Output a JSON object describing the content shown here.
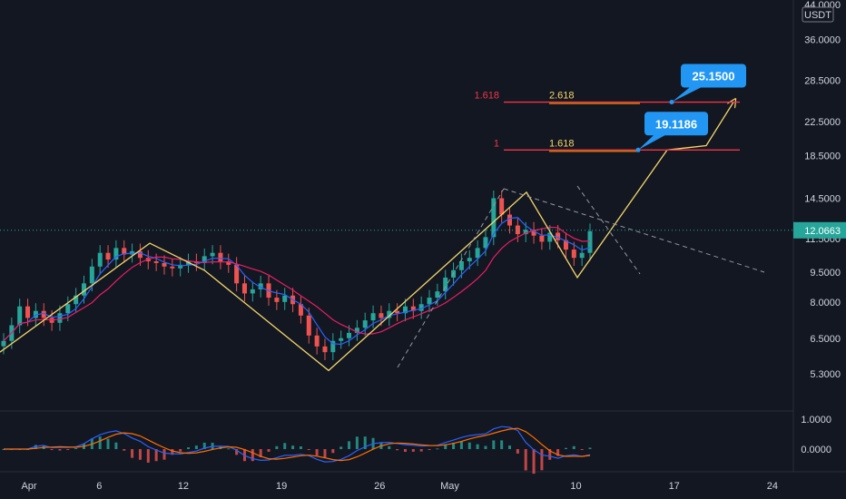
{
  "chart_data": {
    "type": "candlestick",
    "pair_unit": "USDT",
    "price_axis_labels": [
      "44.0000",
      "36.0000",
      "28.5000",
      "22.5000",
      "18.5000",
      "14.5000",
      "11.5000",
      "9.5000",
      "8.0000",
      "6.5000",
      "5.3000"
    ],
    "price_axis_values": [
      44.0,
      36.0,
      28.5,
      22.5,
      18.5,
      14.5,
      11.5,
      9.5,
      8.0,
      6.5,
      5.3
    ],
    "current_price": "12.0663",
    "current_price_value": 12.0663,
    "date_axis_labels": [
      "Apr",
      "6",
      "12",
      "19",
      "26",
      "May",
      "10",
      "17",
      "24"
    ],
    "fib_levels": [
      {
        "left_label": "1.618",
        "right_label": "2.618",
        "value": 25.15,
        "color": "#f23645"
      },
      {
        "left_label": "1",
        "right_label": "1.618",
        "value": 19.1186,
        "color": "#f23645"
      }
    ],
    "callouts": [
      {
        "text": "25.1500",
        "value": 25.15
      },
      {
        "text": "19.1186",
        "value": 19.1186
      }
    ],
    "macd_axis_labels": [
      "1.0000",
      "0.0000"
    ],
    "macd_axis_values": [
      1.0,
      0.0
    ],
    "zigzag_path_prices": [
      6.0,
      11.2,
      9.6,
      5.4,
      15.0,
      9.2,
      19.1186,
      19.6,
      25.15
    ],
    "candle_closes": [
      6.4,
      7.0,
      7.8,
      7.3,
      7.6,
      7.3,
      7.1,
      7.5,
      7.9,
      8.3,
      8.9,
      9.8,
      10.6,
      10.2,
      10.9,
      10.5,
      10.7,
      10.3,
      10.1,
      10.0,
      9.8,
      9.7,
      9.9,
      10.1,
      10.0,
      10.4,
      10.6,
      10.1,
      9.9,
      8.9,
      8.4,
      8.6,
      8.9,
      8.2,
      8.0,
      8.3,
      7.9,
      7.4,
      6.6,
      6.2,
      6.0,
      6.4,
      6.5,
      6.7,
      6.9,
      7.2,
      7.5,
      7.3,
      7.6,
      7.5,
      7.8,
      7.6,
      7.9,
      8.2,
      8.5,
      9.2,
      9.6,
      10.1,
      10.3,
      10.9,
      11.6,
      14.5,
      13.2,
      12.4,
      11.8,
      12.1,
      11.7,
      11.3,
      11.9,
      11.4,
      10.8,
      10.3,
      10.6,
      12.0
    ],
    "title": ""
  }
}
